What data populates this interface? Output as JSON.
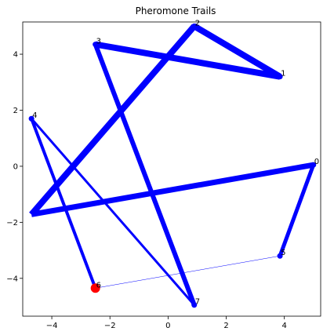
{
  "chart_data": {
    "type": "line",
    "title": "Pheromone Trails",
    "xlabel": "",
    "ylabel": "",
    "xlim": [
      -5.0,
      5.25
    ],
    "ylim": [
      -5.35,
      5.15
    ],
    "grid": false,
    "xticks": [
      -4,
      -2,
      0,
      2,
      4
    ],
    "yticks": [
      -4,
      -2,
      0,
      2,
      4
    ],
    "edge_color": "#0000ff",
    "highlight_color": "#ff0000",
    "nodes": [
      {
        "label": "0",
        "x": 5.0,
        "y": 0.05
      },
      {
        "label": "1",
        "x": 3.85,
        "y": 3.2
      },
      {
        "label": "2",
        "x": 0.9,
        "y": 5.0
      },
      {
        "label": "3",
        "x": -2.5,
        "y": 4.35
      },
      {
        "label": "4",
        "x": -4.7,
        "y": 1.7
      },
      {
        "label": "5",
        "x": 3.85,
        "y": -3.2
      },
      {
        "label": "6",
        "x": -2.5,
        "y": -4.35
      },
      {
        "label": "7",
        "x": 0.9,
        "y": -4.95
      }
    ],
    "start_node": "6",
    "edges": [
      {
        "from": "3",
        "to": "1",
        "pheromone": 8
      },
      {
        "from": "1",
        "to": "2",
        "pheromone": 8
      },
      {
        "from": "2",
        "to": "8x",
        "pheromone": 8
      },
      {
        "from": "8x",
        "to": "0",
        "pheromone": 7
      },
      {
        "from": "0",
        "to": "5",
        "pheromone": 5
      },
      {
        "from": "3",
        "to": "7",
        "pheromone": 6
      },
      {
        "from": "4",
        "to": "6",
        "pheromone": 4
      },
      {
        "from": "4",
        "to": "7",
        "pheromone": 3
      },
      {
        "from": "5",
        "to": "6",
        "pheromone": 0.5
      }
    ],
    "extra_points": [
      {
        "id": "8x",
        "x": -4.7,
        "y": -1.72
      }
    ]
  }
}
